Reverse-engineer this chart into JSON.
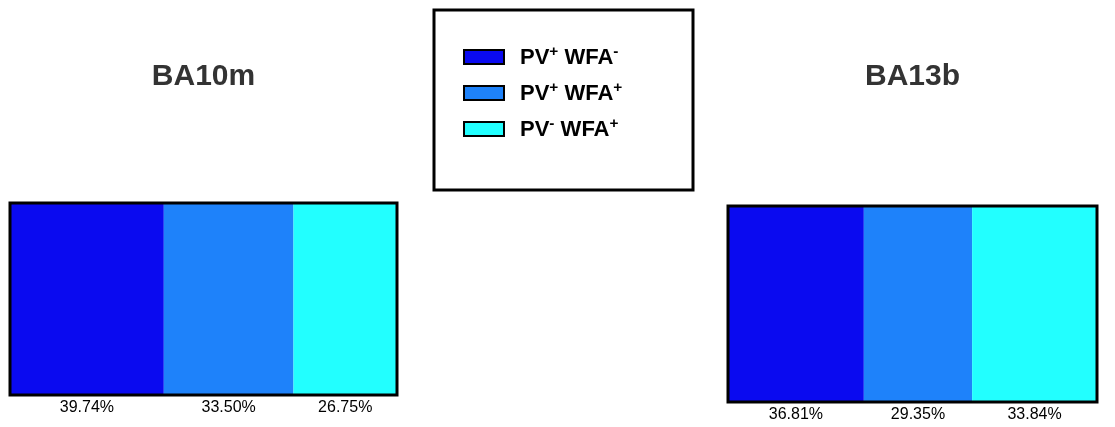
{
  "chart_data": [
    {
      "type": "bar",
      "title": "BA10m",
      "orientation": "horizontal",
      "stacked": true,
      "categories": [
        null
      ],
      "legend": "right",
      "series": [
        {
          "name": "PV$^{+}$ WFA$^{-}$",
          "color": "#0a0af0",
          "values": [
            39.74
          ],
          "value_labels": [
            "39.74%"
          ]
        },
        {
          "name": "PV$^{+}$ WFA$^{+}$",
          "color": "#1e82fa",
          "values": [
            33.5
          ],
          "value_labels": [
            "33.50%"
          ]
        },
        {
          "name": "PV$^{-}$ WFA$^{+}$",
          "color": "#22ffff",
          "values": [
            26.75
          ],
          "value_labels": [
            "26.75%"
          ]
        }
      ]
    },
    {
      "type": "bar",
      "title": "BA13b",
      "orientation": "horizontal",
      "stacked": true,
      "categories": [
        null
      ],
      "series": [
        {
          "color": "#0a0af0",
          "values": [
            36.81
          ],
          "value_labels": [
            "36.81%"
          ]
        },
        {
          "color": "#1e82fa",
          "values": [
            29.35
          ],
          "value_labels": [
            "29.35%"
          ]
        },
        {
          "color": "#22ffff",
          "values": [
            33.84
          ],
          "value_labels": [
            "33.84%"
          ]
        }
      ]
    }
  ]
}
